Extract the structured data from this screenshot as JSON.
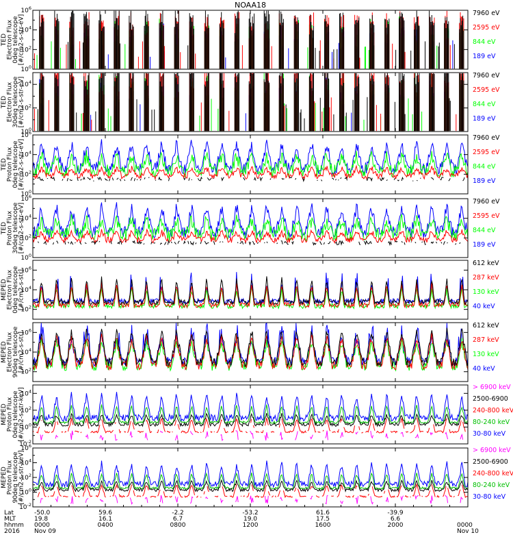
{
  "chart_data": {
    "type": "line",
    "title": "NOAA18",
    "x_range": [
      "00:00",
      "24:00"
    ],
    "x_info": {
      "row_labels": [
        "Lat",
        "MLT",
        "hhmm",
        "2016"
      ],
      "columns": [
        {
          "lat": "-50.0",
          "mlt": "19.8",
          "hhmm": "0000",
          "date": "Nov 09"
        },
        {
          "lat": "59.6",
          "mlt": "16.1",
          "hhmm": "0400",
          "date": ""
        },
        {
          "lat": "-2.2",
          "mlt": "6.7",
          "hhmm": "0800",
          "date": ""
        },
        {
          "lat": "-53.2",
          "mlt": "19.0",
          "hhmm": "1200",
          "date": ""
        },
        {
          "lat": "61.6",
          "mlt": "17.5",
          "hhmm": "1600",
          "date": ""
        },
        {
          "lat": "-39.9",
          "mlt": "6.6",
          "hhmm": "2000",
          "date": ""
        },
        {
          "lat": "",
          "mlt": "",
          "hhmm": "0000",
          "date": "Nov 10"
        }
      ]
    },
    "panels": [
      {
        "ylabel": [
          "TED",
          "Electron Flux",
          "0deg telescope",
          "[#/cm2-s-str-eV]"
        ],
        "ylog_range": [
          0,
          6
        ],
        "ytick_exps": [
          0,
          2,
          4,
          6
        ],
        "baseline": 1.0,
        "pattern": "ted",
        "series": [
          {
            "name": "7960 eV",
            "color": "#000000"
          },
          {
            "name": "2595 eV",
            "color": "#ff0000"
          },
          {
            "name": "844 eV",
            "color": "#00ff00"
          },
          {
            "name": "189 eV",
            "color": "#0000ff"
          }
        ]
      },
      {
        "ylabel": [
          "TED",
          "Electron Flux",
          "30deg telescope",
          "[#/cm2-s-str-eV]"
        ],
        "ylog_range": [
          0,
          5
        ],
        "ytick_exps": [
          0,
          2,
          4
        ],
        "baseline": 1.0,
        "pattern": "ted",
        "series": [
          {
            "name": "7960 eV",
            "color": "#000000"
          },
          {
            "name": "2595 eV",
            "color": "#ff0000"
          },
          {
            "name": "844 eV",
            "color": "#00ff00"
          },
          {
            "name": "189 eV",
            "color": "#0000ff"
          }
        ]
      },
      {
        "ylabel": [
          "TED",
          "Proton Flux",
          "0deg telescope",
          "[#/cm2-s-str-eV]"
        ],
        "ylog_range": [
          0,
          6
        ],
        "ytick_exps": [
          0,
          2,
          4,
          6
        ],
        "baseline": 1.5,
        "pattern": "tedp",
        "series": [
          {
            "name": "7960 eV",
            "color": "#000000"
          },
          {
            "name": "2595 eV",
            "color": "#ff0000"
          },
          {
            "name": "844 eV",
            "color": "#00ff00"
          },
          {
            "name": "189 eV",
            "color": "#0000ff"
          }
        ]
      },
      {
        "ylabel": [
          "TED",
          "Proton Flux",
          "30deg telescope",
          "[#/cm2-s-str-eV]"
        ],
        "ylog_range": [
          0,
          6
        ],
        "ytick_exps": [
          0,
          2,
          4,
          6
        ],
        "baseline": 1.5,
        "pattern": "tedp",
        "series": [
          {
            "name": "7960 eV",
            "color": "#000000"
          },
          {
            "name": "2595 eV",
            "color": "#ff0000"
          },
          {
            "name": "844 eV",
            "color": "#00ff00"
          },
          {
            "name": "189 eV",
            "color": "#0000ff"
          }
        ]
      },
      {
        "ylabel": [
          "MEPED",
          "Electron Flux",
          "0deg telescope",
          "[#/cm2-s-str]"
        ],
        "ylog_range": [
          1,
          7
        ],
        "ytick_exps": [
          2,
          4,
          6
        ],
        "baseline": 2.2,
        "pattern": "mepe",
        "series": [
          {
            "name": "612 keV",
            "color": "#000000"
          },
          {
            "name": "287 keV",
            "color": "#ff0000"
          },
          {
            "name": "130 keV",
            "color": "#00ff00"
          },
          {
            "name": "40 keV",
            "color": "#0000ff"
          }
        ]
      },
      {
        "ylabel": [
          "MEPED",
          "Electron Flux",
          "90deg telescope",
          "[#/cm2-s-str]"
        ],
        "ylog_range": [
          1,
          7
        ],
        "ytick_exps": [
          2,
          4,
          6
        ],
        "baseline": 2.2,
        "pattern": "mepe90",
        "series": [
          {
            "name": "612 keV",
            "color": "#000000"
          },
          {
            "name": "287 keV",
            "color": "#ff0000"
          },
          {
            "name": "130 keV",
            "color": "#00ff00"
          },
          {
            "name": "40 keV",
            "color": "#0000ff"
          }
        ]
      },
      {
        "ylabel": [
          "MEPED",
          "Proton Flux",
          "0deg telescope",
          "[#/cm2-s-str-keV]"
        ],
        "ylog_range": [
          -2,
          5
        ],
        "ytick_exps": [
          -2,
          0,
          2,
          4
        ],
        "baseline": 0.3,
        "pattern": "mepp",
        "series": [
          {
            "name": "> 6900 keV",
            "color": "#ff00ff"
          },
          {
            "name": "2500-6900",
            "color": "#000000"
          },
          {
            "name": "240-800 keV",
            "color": "#ff0000"
          },
          {
            "name": "80-240 keV",
            "color": "#00c000"
          },
          {
            "name": "30-80 keV",
            "color": "#0000ff"
          }
        ]
      },
      {
        "ylabel": [
          "MEPED",
          "Proton Flux",
          "90deg telescope",
          "[#/cm2-s-str-keV]"
        ],
        "ylog_range": [
          -2,
          6
        ],
        "ytick_exps": [
          -2,
          0,
          2,
          4,
          6
        ],
        "baseline": 0.3,
        "pattern": "mepp",
        "series": [
          {
            "name": "> 6900 keV",
            "color": "#ff00ff"
          },
          {
            "name": "2500-6900",
            "color": "#000000"
          },
          {
            "name": "240-800 keV",
            "color": "#ff0000"
          },
          {
            "name": "80-240 keV",
            "color": "#00c000"
          },
          {
            "name": "30-80 keV",
            "color": "#0000ff"
          }
        ]
      }
    ]
  }
}
